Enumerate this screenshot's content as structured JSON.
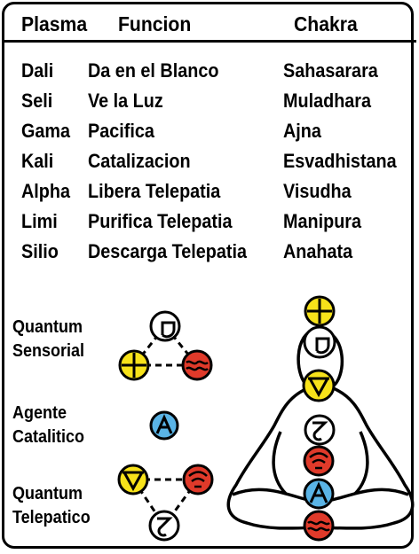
{
  "header": {
    "plasma": "Plasma",
    "funcion": "Funcion",
    "chakra": "Chakra"
  },
  "rows": [
    {
      "plasma": "Dali",
      "funcion": "Da en el Blanco",
      "chakra": "Sahasarara"
    },
    {
      "plasma": "Seli",
      "funcion": "Ve la Luz",
      "chakra": "Muladhara"
    },
    {
      "plasma": "Gama",
      "funcion": "Pacifica",
      "chakra": "Ajna"
    },
    {
      "plasma": "Kali",
      "funcion": "Catalizacion",
      "chakra": "Esvadhistana"
    },
    {
      "plasma": "Alpha",
      "funcion": "Libera Telepatia",
      "chakra": "Visudha"
    },
    {
      "plasma": "Limi",
      "funcion": "Purifica Telepatia",
      "chakra": "Manipura"
    },
    {
      "plasma": "Silio",
      "funcion": "Descarga Telepatia",
      "chakra": "Anahata"
    }
  ],
  "groups": {
    "quantum_sensorial": {
      "line1": "Quantum",
      "line2": "Sensorial"
    },
    "agente_catalitico": {
      "line1": "Agente",
      "line2": "Catalitico"
    },
    "quantum_telepatico": {
      "line1": "Quantum",
      "line2": "Telepatico"
    }
  },
  "colors": {
    "yellow": "#f7e21a",
    "red": "#e03a2a",
    "blue": "#5ab4e6",
    "white": "#ffffff",
    "ink": "#000000"
  }
}
